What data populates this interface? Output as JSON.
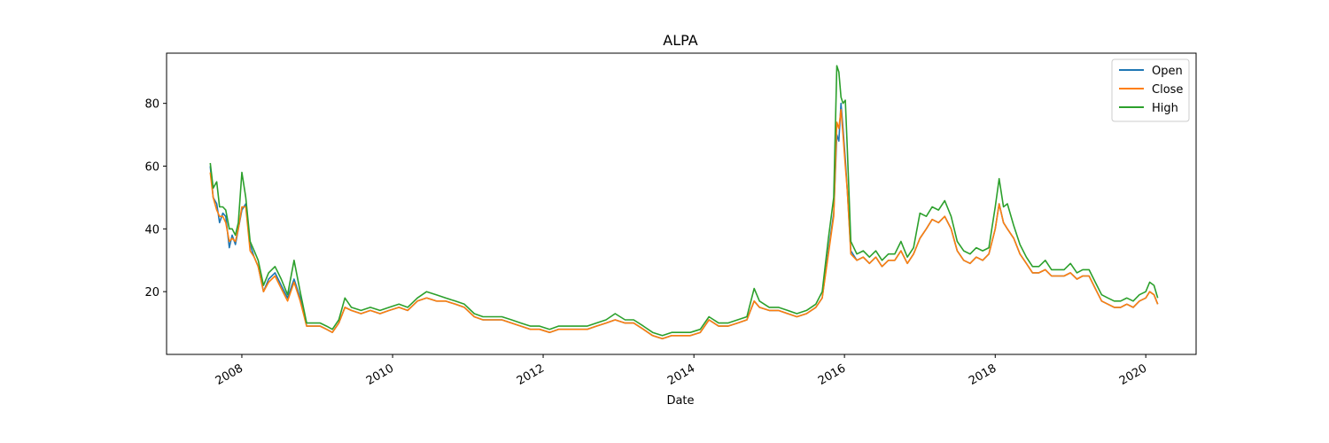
{
  "chart_data": {
    "type": "line",
    "title": "ALPA",
    "xlabel": "Date",
    "ylabel": "",
    "xlim": [
      "2007-01-01",
      "2020-09-01"
    ],
    "ylim": [
      0,
      96
    ],
    "grid": false,
    "legend_position": "top-right",
    "x_ticks": [
      "2008",
      "2010",
      "2012",
      "2014",
      "2016",
      "2018",
      "2020"
    ],
    "y_ticks": [
      20,
      40,
      60,
      80
    ],
    "series": [
      {
        "name": "Open",
        "color": "#1f77b4",
        "x": [
          "2007-08-01",
          "2007-08-15",
          "2007-09-01",
          "2007-09-15",
          "2007-10-01",
          "2007-10-15",
          "2007-11-01",
          "2007-11-15",
          "2007-12-01",
          "2007-12-15",
          "2008-01-01",
          "2008-01-20",
          "2008-02-10",
          "2008-03-01",
          "2008-03-20",
          "2008-04-15",
          "2008-05-10",
          "2008-06-10",
          "2008-07-10",
          "2008-08-10",
          "2008-09-10",
          "2008-10-10",
          "2008-11-10",
          "2008-12-10",
          "2009-01-15",
          "2009-02-15",
          "2009-03-15",
          "2009-04-15",
          "2009-05-15",
          "2009-06-15",
          "2009-08-01",
          "2009-09-15",
          "2009-11-01",
          "2009-12-15",
          "2010-02-01",
          "2010-03-15",
          "2010-05-01",
          "2010-06-15",
          "2010-08-01",
          "2010-09-15",
          "2010-11-01",
          "2010-12-15",
          "2011-02-01",
          "2011-03-15",
          "2011-05-01",
          "2011-06-15",
          "2011-08-01",
          "2011-09-15",
          "2011-11-01",
          "2011-12-15",
          "2012-02-01",
          "2012-03-15",
          "2012-05-01",
          "2012-06-15",
          "2012-08-01",
          "2012-09-15",
          "2012-11-01",
          "2012-12-15",
          "2013-02-01",
          "2013-03-15",
          "2013-05-01",
          "2013-06-15",
          "2013-08-01",
          "2013-09-15",
          "2013-11-01",
          "2013-12-15",
          "2014-02-01",
          "2014-03-15",
          "2014-05-01",
          "2014-06-15",
          "2014-08-01",
          "2014-09-15",
          "2014-10-20",
          "2014-11-15",
          "2015-01-01",
          "2015-02-15",
          "2015-04-01",
          "2015-05-15",
          "2015-07-01",
          "2015-08-15",
          "2015-09-15",
          "2015-10-15",
          "2015-11-10",
          "2015-11-25",
          "2015-12-05",
          "2015-12-15",
          "2015-12-25",
          "2016-01-05",
          "2016-01-15",
          "2016-02-01",
          "2016-03-01",
          "2016-04-01",
          "2016-05-01",
          "2016-06-01",
          "2016-07-01",
          "2016-08-01",
          "2016-09-01",
          "2016-10-01",
          "2016-11-01",
          "2016-12-01",
          "2017-01-01",
          "2017-02-01",
          "2017-03-01",
          "2017-04-01",
          "2017-05-01",
          "2017-06-01",
          "2017-07-01",
          "2017-08-01",
          "2017-09-01",
          "2017-10-01",
          "2017-11-01",
          "2017-12-01",
          "2018-01-01",
          "2018-01-20",
          "2018-02-10",
          "2018-03-01",
          "2018-04-01",
          "2018-05-01",
          "2018-06-01",
          "2018-07-01",
          "2018-08-01",
          "2018-09-01",
          "2018-10-01",
          "2018-11-01",
          "2018-12-01",
          "2019-01-01",
          "2019-02-01",
          "2019-03-01",
          "2019-04-01",
          "2019-05-01",
          "2019-06-01",
          "2019-07-01",
          "2019-08-01",
          "2019-09-01",
          "2019-10-01",
          "2019-11-01",
          "2019-12-01",
          "2020-01-01",
          "2020-01-20",
          "2020-02-10",
          "2020-02-28"
        ],
        "values": [
          60,
          50,
          48,
          42,
          45,
          44,
          34,
          38,
          35,
          40,
          46,
          48,
          35,
          31,
          28,
          20,
          24,
          26,
          22,
          18,
          24,
          18,
          9,
          9,
          9,
          8,
          7,
          10,
          15,
          14,
          13,
          14,
          13,
          14,
          15,
          14,
          17,
          18,
          17,
          17,
          16,
          15,
          12,
          11,
          11,
          11,
          10,
          9,
          8,
          8,
          7,
          8,
          8,
          8,
          8,
          9,
          10,
          11,
          10,
          10,
          8,
          6,
          5,
          6,
          6,
          6,
          7,
          11,
          9,
          9,
          10,
          11,
          17,
          15,
          14,
          14,
          13,
          12,
          13,
          15,
          18,
          33,
          45,
          70,
          68,
          80,
          72,
          62,
          52,
          33,
          30,
          31,
          29,
          31,
          28,
          30,
          30,
          33,
          29,
          32,
          37,
          40,
          43,
          42,
          44,
          40,
          33,
          30,
          29,
          31,
          30,
          32,
          40,
          48,
          42,
          40,
          37,
          32,
          29,
          26,
          26,
          27,
          25,
          25,
          25,
          26,
          24,
          25,
          25,
          21,
          17,
          16,
          15,
          15,
          16,
          15,
          17,
          18,
          20,
          19,
          16
        ]
      },
      {
        "name": "Close",
        "color": "#ff7f0e",
        "x": [
          "2007-08-01",
          "2007-08-15",
          "2007-09-01",
          "2007-09-15",
          "2007-10-01",
          "2007-10-15",
          "2007-11-01",
          "2007-11-15",
          "2007-12-01",
          "2007-12-15",
          "2008-01-01",
          "2008-01-20",
          "2008-02-10",
          "2008-03-01",
          "2008-03-20",
          "2008-04-15",
          "2008-05-10",
          "2008-06-10",
          "2008-07-10",
          "2008-08-10",
          "2008-09-10",
          "2008-10-10",
          "2008-11-10",
          "2008-12-10",
          "2009-01-15",
          "2009-02-15",
          "2009-03-15",
          "2009-04-15",
          "2009-05-15",
          "2009-06-15",
          "2009-08-01",
          "2009-09-15",
          "2009-11-01",
          "2009-12-15",
          "2010-02-01",
          "2010-03-15",
          "2010-05-01",
          "2010-06-15",
          "2010-08-01",
          "2010-09-15",
          "2010-11-01",
          "2010-12-15",
          "2011-02-01",
          "2011-03-15",
          "2011-05-01",
          "2011-06-15",
          "2011-08-01",
          "2011-09-15",
          "2011-11-01",
          "2011-12-15",
          "2012-02-01",
          "2012-03-15",
          "2012-05-01",
          "2012-06-15",
          "2012-08-01",
          "2012-09-15",
          "2012-11-01",
          "2012-12-15",
          "2013-02-01",
          "2013-03-15",
          "2013-05-01",
          "2013-06-15",
          "2013-08-01",
          "2013-09-15",
          "2013-11-01",
          "2013-12-15",
          "2014-02-01",
          "2014-03-15",
          "2014-05-01",
          "2014-06-15",
          "2014-08-01",
          "2014-09-15",
          "2014-10-20",
          "2014-11-15",
          "2015-01-01",
          "2015-02-15",
          "2015-04-01",
          "2015-05-15",
          "2015-07-01",
          "2015-08-15",
          "2015-09-15",
          "2015-10-15",
          "2015-11-10",
          "2015-11-25",
          "2015-12-05",
          "2015-12-15",
          "2015-12-25",
          "2016-01-05",
          "2016-01-15",
          "2016-02-01",
          "2016-03-01",
          "2016-04-01",
          "2016-05-01",
          "2016-06-01",
          "2016-07-01",
          "2016-08-01",
          "2016-09-01",
          "2016-10-01",
          "2016-11-01",
          "2016-12-01",
          "2017-01-01",
          "2017-02-01",
          "2017-03-01",
          "2017-04-01",
          "2017-05-01",
          "2017-06-01",
          "2017-07-01",
          "2017-08-01",
          "2017-09-01",
          "2017-10-01",
          "2017-11-01",
          "2017-12-01",
          "2018-01-01",
          "2018-01-20",
          "2018-02-10",
          "2018-03-01",
          "2018-04-01",
          "2018-05-01",
          "2018-06-01",
          "2018-07-01",
          "2018-08-01",
          "2018-09-01",
          "2018-10-01",
          "2018-11-01",
          "2018-12-01",
          "2019-01-01",
          "2019-02-01",
          "2019-03-01",
          "2019-04-01",
          "2019-05-01",
          "2019-06-01",
          "2019-07-01",
          "2019-08-01",
          "2019-09-01",
          "2019-10-01",
          "2019-11-01",
          "2019-12-01",
          "2020-01-01",
          "2020-01-20",
          "2020-02-10",
          "2020-02-28"
        ],
        "values": [
          58,
          50,
          46,
          44,
          44,
          42,
          36,
          37,
          36,
          40,
          47,
          47,
          33,
          31,
          28,
          20,
          23,
          25,
          21,
          17,
          23,
          17,
          9,
          9,
          9,
          8,
          7,
          10,
          15,
          14,
          13,
          14,
          13,
          14,
          15,
          14,
          17,
          18,
          17,
          17,
          16,
          15,
          12,
          11,
          11,
          11,
          10,
          9,
          8,
          8,
          7,
          8,
          8,
          8,
          8,
          9,
          10,
          11,
          10,
          10,
          8,
          6,
          5,
          6,
          6,
          6,
          7,
          11,
          9,
          9,
          10,
          11,
          17,
          15,
          14,
          14,
          13,
          12,
          13,
          15,
          18,
          32,
          44,
          74,
          72,
          78,
          70,
          60,
          52,
          32,
          30,
          31,
          29,
          31,
          28,
          30,
          30,
          33,
          29,
          32,
          37,
          40,
          43,
          42,
          44,
          40,
          33,
          30,
          29,
          31,
          30,
          32,
          40,
          48,
          42,
          40,
          37,
          32,
          29,
          26,
          26,
          27,
          25,
          25,
          25,
          26,
          24,
          25,
          25,
          21,
          17,
          16,
          15,
          15,
          16,
          15,
          17,
          18,
          20,
          19,
          16
        ]
      },
      {
        "name": "High",
        "color": "#2ca02c",
        "x": [
          "2007-08-01",
          "2007-08-15",
          "2007-09-01",
          "2007-09-15",
          "2007-10-01",
          "2007-10-15",
          "2007-11-01",
          "2007-11-15",
          "2007-12-01",
          "2007-12-15",
          "2008-01-01",
          "2008-01-20",
          "2008-02-10",
          "2008-03-01",
          "2008-03-20",
          "2008-04-15",
          "2008-05-10",
          "2008-06-10",
          "2008-07-10",
          "2008-08-10",
          "2008-09-10",
          "2008-10-10",
          "2008-11-10",
          "2008-12-10",
          "2009-01-15",
          "2009-02-15",
          "2009-03-15",
          "2009-04-15",
          "2009-05-15",
          "2009-06-15",
          "2009-08-01",
          "2009-09-15",
          "2009-11-01",
          "2009-12-15",
          "2010-02-01",
          "2010-03-15",
          "2010-05-01",
          "2010-06-15",
          "2010-08-01",
          "2010-09-15",
          "2010-11-01",
          "2010-12-15",
          "2011-02-01",
          "2011-03-15",
          "2011-05-01",
          "2011-06-15",
          "2011-08-01",
          "2011-09-15",
          "2011-11-01",
          "2011-12-15",
          "2012-02-01",
          "2012-03-15",
          "2012-05-01",
          "2012-06-15",
          "2012-08-01",
          "2012-09-15",
          "2012-11-01",
          "2012-12-15",
          "2013-02-01",
          "2013-03-15",
          "2013-05-01",
          "2013-06-15",
          "2013-08-01",
          "2013-09-15",
          "2013-11-01",
          "2013-12-15",
          "2014-02-01",
          "2014-03-15",
          "2014-05-01",
          "2014-06-15",
          "2014-08-01",
          "2014-09-15",
          "2014-10-20",
          "2014-11-15",
          "2015-01-01",
          "2015-02-15",
          "2015-04-01",
          "2015-05-15",
          "2015-07-01",
          "2015-08-15",
          "2015-09-15",
          "2015-10-15",
          "2015-11-10",
          "2015-11-25",
          "2015-12-05",
          "2015-12-15",
          "2015-12-25",
          "2016-01-05",
          "2016-01-15",
          "2016-02-01",
          "2016-03-01",
          "2016-04-01",
          "2016-05-01",
          "2016-06-01",
          "2016-07-01",
          "2016-08-01",
          "2016-09-01",
          "2016-10-01",
          "2016-11-01",
          "2016-12-01",
          "2017-01-01",
          "2017-02-01",
          "2017-03-01",
          "2017-04-01",
          "2017-05-01",
          "2017-06-01",
          "2017-07-01",
          "2017-08-01",
          "2017-09-01",
          "2017-10-01",
          "2017-11-01",
          "2017-12-01",
          "2018-01-01",
          "2018-01-20",
          "2018-02-10",
          "2018-03-01",
          "2018-04-01",
          "2018-05-01",
          "2018-06-01",
          "2018-07-01",
          "2018-08-01",
          "2018-09-01",
          "2018-10-01",
          "2018-11-01",
          "2018-12-01",
          "2019-01-01",
          "2019-02-01",
          "2019-03-01",
          "2019-04-01",
          "2019-05-01",
          "2019-06-01",
          "2019-07-01",
          "2019-08-01",
          "2019-09-01",
          "2019-10-01",
          "2019-11-01",
          "2019-12-01",
          "2020-01-01",
          "2020-01-20",
          "2020-02-10",
          "2020-02-28"
        ],
        "values": [
          61,
          53,
          55,
          47,
          47,
          46,
          40,
          40,
          38,
          42,
          58,
          50,
          36,
          33,
          30,
          22,
          26,
          28,
          24,
          19,
          30,
          20,
          10,
          10,
          10,
          9,
          8,
          11,
          18,
          15,
          14,
          15,
          14,
          15,
          16,
          15,
          18,
          20,
          19,
          18,
          17,
          16,
          13,
          12,
          12,
          12,
          11,
          10,
          9,
          9,
          8,
          9,
          9,
          9,
          9,
          10,
          11,
          13,
          11,
          11,
          9,
          7,
          6,
          7,
          7,
          7,
          8,
          12,
          10,
          10,
          11,
          12,
          21,
          17,
          15,
          15,
          14,
          13,
          14,
          16,
          20,
          37,
          50,
          92,
          90,
          82,
          80,
          81,
          65,
          36,
          32,
          33,
          31,
          33,
          30,
          32,
          32,
          36,
          31,
          34,
          45,
          44,
          47,
          46,
          49,
          44,
          36,
          33,
          32,
          34,
          33,
          34,
          47,
          56,
          47,
          48,
          41,
          35,
          31,
          28,
          28,
          30,
          27,
          27,
          27,
          29,
          26,
          27,
          27,
          23,
          19,
          18,
          17,
          17,
          18,
          17,
          19,
          20,
          23,
          22,
          18
        ]
      }
    ]
  }
}
